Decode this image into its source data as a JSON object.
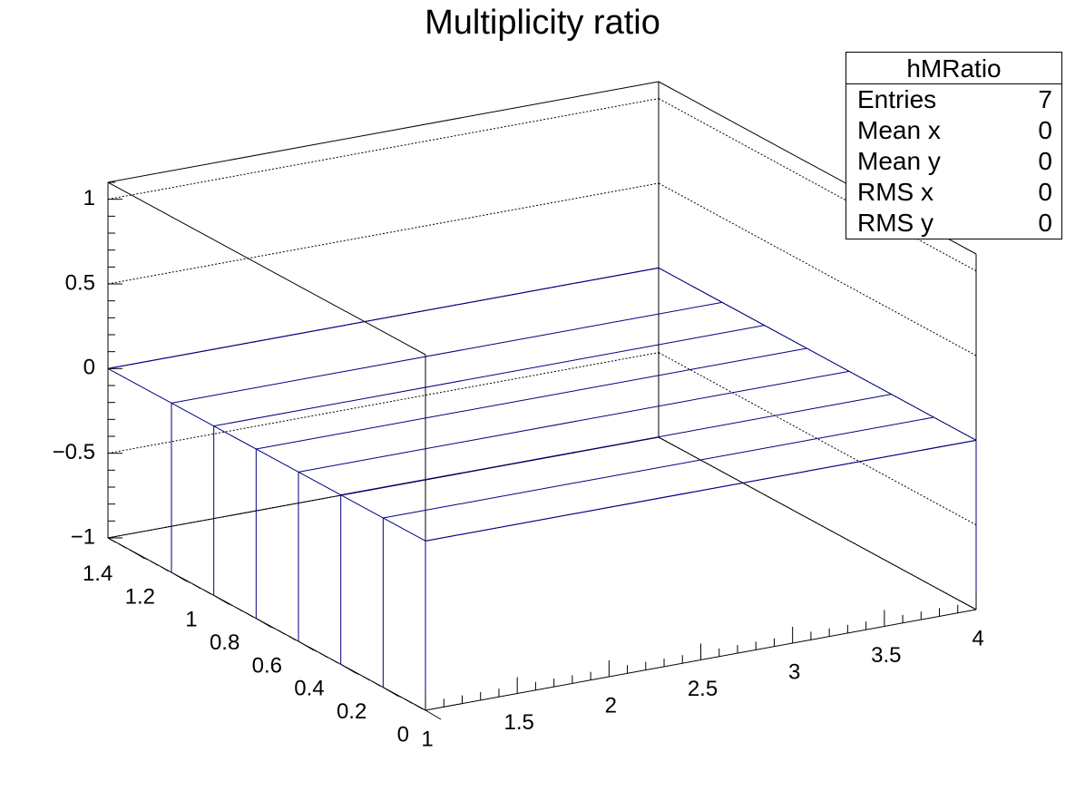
{
  "chart_data": {
    "type": "lego3d",
    "title": "Multiplicity ratio",
    "histogram_name": "hMRatio",
    "stats": [
      {
        "label": "Entries",
        "value": "7"
      },
      {
        "label": "Mean x",
        "value": "0"
      },
      {
        "label": "Mean y",
        "value": "0"
      },
      {
        "label": "RMS x",
        "value": "0"
      },
      {
        "label": "RMS y",
        "value": "0"
      }
    ],
    "x_axis": {
      "range": [
        1,
        4
      ],
      "ticks": [
        1,
        1.5,
        2,
        2.5,
        3,
        3.5,
        4
      ],
      "tick_labels": [
        "1",
        "1.5",
        "2",
        "2.5",
        "3",
        "3.5",
        "4"
      ]
    },
    "y_axis": {
      "range": [
        0,
        1.5
      ],
      "ticks": [
        0,
        0.2,
        0.4,
        0.6,
        0.8,
        1,
        1.2,
        1.4
      ],
      "tick_labels": [
        "0",
        "0.2",
        "0.4",
        "0.6",
        "0.8",
        "1",
        "1.2",
        "1.4"
      ]
    },
    "z_axis": {
      "range": [
        -1,
        1.1
      ],
      "ticks": [
        -1,
        -0.5,
        0,
        0.5,
        1
      ],
      "tick_labels": [
        "−1",
        "−0.5",
        "0",
        "0.5",
        "1"
      ]
    },
    "bin_edges_y": [
      0,
      0.2,
      0.4,
      0.6,
      0.8,
      1,
      1.2,
      1.5
    ],
    "bin_contents": [
      0,
      0,
      0,
      0,
      0,
      0,
      0
    ],
    "grid": true,
    "colors": {
      "frame": "#000000",
      "bars": "#000080",
      "grid": "#000000"
    }
  }
}
